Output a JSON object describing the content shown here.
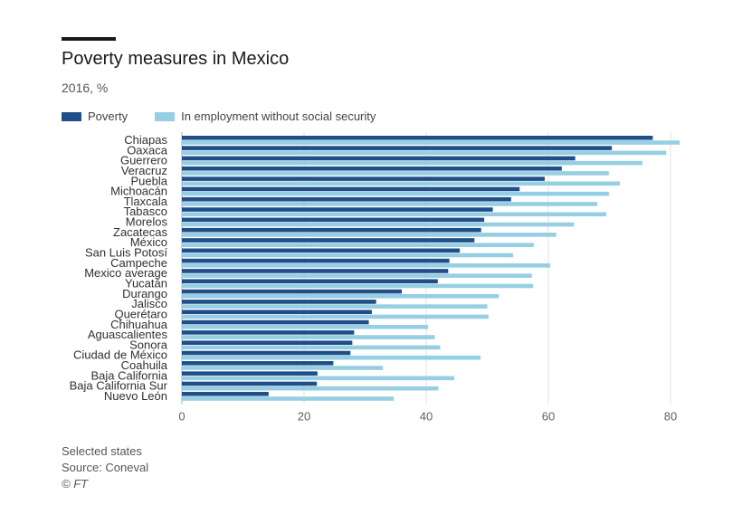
{
  "header": {
    "title": "Poverty measures in Mexico",
    "subtitle": "2016, %"
  },
  "footer": {
    "note": "Selected states",
    "source": "Source: Coneval",
    "credit": "© FT"
  },
  "colors": {
    "poverty": "#1f4e89",
    "employment": "#96cfe3",
    "grid": "#e5e2de",
    "axis": "#b3aea8",
    "text": "#33302e"
  },
  "chart_data": {
    "type": "bar",
    "orientation": "horizontal",
    "title": "Poverty measures in Mexico",
    "subtitle": "2016, %",
    "xlabel": "",
    "ylabel": "",
    "xlim": [
      0,
      82
    ],
    "xticks": [
      0,
      20,
      40,
      60,
      80
    ],
    "grid": true,
    "legend_position": "top-left",
    "categories": [
      "Chiapas",
      "Oaxaca",
      "Guerrero",
      "Veracruz",
      "Puebla",
      "Michoacán",
      "Tlaxcala",
      "Tabasco",
      "Morelos",
      "Zacatecas",
      "México",
      "San Luis Potosí",
      "Campeche",
      "Mexico average",
      "Yucatán",
      "Durango",
      "Jalisco",
      "Querétaro",
      "Chihuahua",
      "Aguascalientes",
      "Sonora",
      "Ciudad de México",
      "Coahuila",
      "Baja California",
      "Baja California Sur",
      "Nuevo León"
    ],
    "series": [
      {
        "name": "Poverty",
        "color": "#1f4e89",
        "values": [
          77.1,
          70.4,
          64.4,
          62.2,
          59.4,
          55.3,
          53.9,
          50.9,
          49.5,
          49.0,
          47.9,
          45.5,
          43.8,
          43.6,
          41.9,
          36.0,
          31.8,
          31.1,
          30.6,
          28.2,
          27.9,
          27.6,
          24.8,
          22.2,
          22.1,
          14.2
        ]
      },
      {
        "name": "In employment without social security",
        "color": "#96cfe3",
        "values": [
          81.5,
          79.3,
          75.4,
          69.9,
          71.7,
          69.9,
          68.0,
          69.5,
          64.2,
          61.3,
          57.6,
          54.2,
          60.3,
          57.3,
          57.5,
          51.9,
          50.0,
          50.2,
          40.3,
          41.4,
          42.3,
          48.9,
          32.9,
          44.6,
          42.0,
          34.7
        ]
      }
    ]
  }
}
